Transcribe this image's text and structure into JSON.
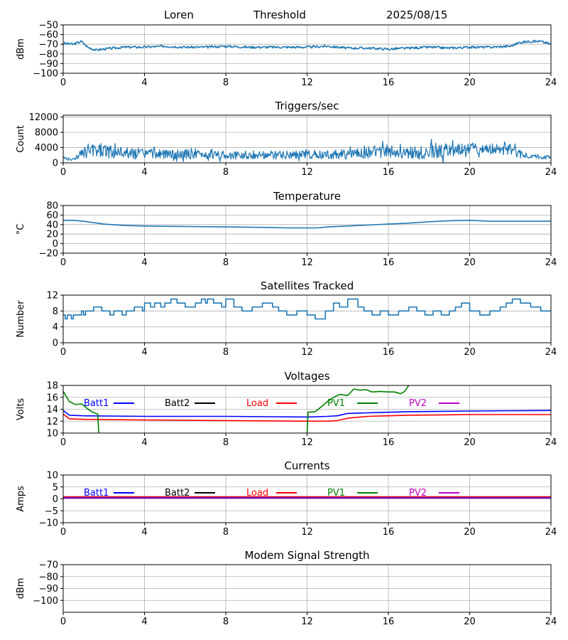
{
  "header": {
    "station": "Loren",
    "mode": "Threshold",
    "date": "2025/08/15"
  },
  "colors": {
    "series": "#1f77b4",
    "grid": "#b0b0b0",
    "batt1": "#0000ff",
    "batt2": "#000000",
    "load": "#ff0000",
    "pv1": "#008000",
    "pv2": "#bf00bf"
  },
  "chart_data": [
    {
      "id": "signal",
      "type": "line",
      "title": "",
      "ylabel": "dBm",
      "xlim": [
        0,
        24
      ],
      "ylim": [
        -100,
        -50
      ],
      "xticks": [
        0,
        4,
        8,
        12,
        16,
        20,
        24
      ],
      "yticks": [
        -100,
        -90,
        -80,
        -70,
        -60,
        -50
      ],
      "series": [
        {
          "name": "signal",
          "x": [
            0,
            0.5,
            0.9,
            1.2,
            1.6,
            2.0,
            3,
            4,
            5,
            6,
            7,
            8,
            9,
            10,
            11,
            12,
            13,
            14,
            15,
            16,
            17,
            18,
            19,
            20,
            21,
            22,
            22.5,
            23,
            23.5,
            24
          ],
          "y": [
            -69,
            -70,
            -67,
            -73,
            -76,
            -75,
            -73,
            -73,
            -72,
            -73,
            -73,
            -72,
            -73,
            -73,
            -73,
            -73,
            -72,
            -74,
            -74,
            -75,
            -74,
            -73,
            -74,
            -73,
            -73,
            -72,
            -68,
            -67,
            -67,
            -70
          ]
        }
      ]
    },
    {
      "id": "triggers",
      "type": "line",
      "title": "Triggers/sec",
      "ylabel": "Count",
      "xlim": [
        0,
        24
      ],
      "ylim": [
        0,
        12500
      ],
      "xticks": [
        0,
        4,
        8,
        12,
        16,
        20,
        24
      ],
      "yticks": [
        0,
        4000,
        8000,
        12000
      ],
      "series": [
        {
          "name": "triggers",
          "x": [
            0,
            0.5,
            1,
            1.5,
            2,
            2.5,
            3,
            3.5,
            4,
            4.5,
            5,
            5.5,
            6,
            6.5,
            7,
            7.5,
            8,
            8.5,
            9,
            9.5,
            10,
            10.5,
            11,
            11.5,
            12,
            12.5,
            13,
            13.5,
            14,
            14.5,
            15,
            15.5,
            16,
            16.5,
            17,
            17.5,
            18,
            18.5,
            19,
            19.5,
            20,
            20.5,
            21,
            21.5,
            22,
            22.5,
            23,
            23.5,
            24
          ],
          "center": [
            1300,
            800,
            2800,
            3000,
            3200,
            2800,
            2600,
            2500,
            2400,
            2300,
            2200,
            2200,
            2300,
            2100,
            2100,
            2000,
            2000,
            1900,
            1900,
            2000,
            2100,
            2000,
            2000,
            2100,
            2200,
            2200,
            2100,
            2100,
            2300,
            2500,
            2700,
            3100,
            3000,
            2500,
            2600,
            2700,
            3100,
            3000,
            3100,
            3300,
            3600,
            3600,
            3600,
            3600,
            3500,
            2200,
            1700,
            1500,
            1400
          ],
          "amp": [
            500,
            400,
            1800,
            2300,
            2600,
            2200,
            2000,
            1800,
            1700,
            1600,
            1500,
            1500,
            1600,
            1500,
            1500,
            1300,
            1300,
            1300,
            1300,
            1300,
            1400,
            1400,
            1400,
            1400,
            1500,
            1500,
            1400,
            1400,
            1600,
            1700,
            1900,
            2200,
            2200,
            1900,
            2000,
            2200,
            2700,
            2600,
            2400,
            2300,
            2000,
            1900,
            1900,
            1900,
            2000,
            1200,
            800,
            700,
            600
          ]
        }
      ]
    },
    {
      "id": "temperature",
      "type": "line",
      "title": "Temperature",
      "ylabel": "°C",
      "xlim": [
        0,
        24
      ],
      "ylim": [
        -20,
        80
      ],
      "xticks": [
        0,
        4,
        8,
        12,
        16,
        20,
        24
      ],
      "yticks": [
        -20,
        0,
        20,
        40,
        60,
        80
      ],
      "series": [
        {
          "name": "temperature",
          "x": [
            0,
            0.5,
            1,
            2,
            3,
            4,
            6,
            8,
            10,
            11,
            12,
            12.5,
            13,
            14,
            15,
            16,
            17,
            18,
            19,
            20,
            21,
            22,
            24
          ],
          "y": [
            49,
            49,
            47,
            41,
            38,
            37,
            36,
            35,
            34,
            33,
            33,
            33,
            35,
            37,
            39,
            41,
            43,
            46,
            48,
            49,
            47,
            47,
            47
          ]
        }
      ]
    },
    {
      "id": "satellites",
      "type": "line",
      "title": "Satellites Tracked",
      "ylabel": "Number",
      "xlim": [
        0,
        24
      ],
      "ylim": [
        0,
        12
      ],
      "xticks": [
        0,
        4,
        8,
        12,
        16,
        20,
        24
      ],
      "yticks": [
        0,
        4,
        8,
        12
      ],
      "series": [
        {
          "name": "satellites",
          "x": [
            0,
            0.1,
            0.2,
            0.4,
            0.5,
            0.9,
            1.0,
            1.1,
            1.5,
            1.9,
            2.3,
            2.5,
            2.9,
            3.1,
            3.5,
            3.9,
            4.0,
            4.3,
            4.5,
            4.8,
            5.0,
            5.3,
            5.6,
            6.0,
            6.5,
            6.8,
            7.0,
            7.1,
            7.4,
            7.8,
            8.0,
            8.4,
            8.8,
            9.3,
            9.8,
            10.3,
            10.6,
            11.0,
            11.5,
            12.0,
            12.4,
            12.9,
            13.3,
            13.6,
            14.0,
            14.5,
            14.8,
            15.2,
            15.6,
            16.0,
            16.5,
            17.0,
            17.4,
            17.8,
            18.2,
            18.6,
            19.0,
            19.3,
            19.6,
            20.0,
            20.5,
            21.0,
            21.5,
            21.8,
            22.1,
            22.5,
            23.0,
            23.5,
            24.0
          ],
          "y": [
            7,
            6,
            7,
            6,
            7,
            8,
            7,
            8,
            9,
            8,
            7,
            8,
            7,
            8,
            9,
            8,
            10,
            9,
            10,
            9,
            10,
            11,
            10,
            9,
            10,
            11,
            10,
            11,
            10,
            9,
            11,
            9,
            8,
            9,
            10,
            9,
            8,
            7,
            8,
            7,
            6,
            8,
            10,
            9,
            11,
            9,
            8,
            7,
            8,
            7,
            8,
            9,
            8,
            7,
            8,
            7,
            8,
            9,
            10,
            8,
            7,
            8,
            9,
            10,
            11,
            10,
            9,
            8,
            8
          ]
        }
      ]
    },
    {
      "id": "voltages",
      "type": "line",
      "title": "Voltages",
      "ylabel": "Volts",
      "xlim": [
        0,
        24
      ],
      "ylim": [
        10,
        18
      ],
      "xticks": [
        0,
        4,
        8,
        12,
        16,
        20,
        24
      ],
      "yticks": [
        10,
        12,
        14,
        16,
        18
      ],
      "legend": [
        "Batt1",
        "Batt2",
        "Load",
        "PV1",
        "PV2"
      ],
      "series": [
        {
          "name": "Batt1",
          "x": [
            0,
            0.3,
            1,
            4,
            8,
            12,
            13,
            13.5,
            14,
            15,
            16,
            17,
            20,
            24
          ],
          "y": [
            13.8,
            13.0,
            12.9,
            12.8,
            12.8,
            12.7,
            12.8,
            12.9,
            13.3,
            13.4,
            13.5,
            13.6,
            13.7,
            13.8
          ]
        },
        {
          "name": "Load",
          "x": [
            0,
            0.3,
            1,
            4,
            8,
            12,
            13,
            13.5,
            14,
            15,
            16,
            17,
            20,
            24
          ],
          "y": [
            13.2,
            12.4,
            12.3,
            12.2,
            12.1,
            12.0,
            12.0,
            12.1,
            12.5,
            12.8,
            12.9,
            13.0,
            13.1,
            13.1
          ]
        },
        {
          "name": "PV1",
          "x": [
            0,
            0.3,
            0.6,
            0.9,
            1.2,
            1.4,
            1.6,
            1.7,
            1.75,
            null,
            12.0,
            12.05,
            12.4,
            12.7,
            13.0,
            13.3,
            13.6,
            14.0,
            14.3,
            14.6,
            14.9,
            15.2,
            15.6,
            16.0,
            16.3,
            16.6,
            16.8,
            17.0
          ],
          "y": [
            17.0,
            15.3,
            14.8,
            14.9,
            14.1,
            13.6,
            13.3,
            13.2,
            10.0,
            null,
            10.0,
            13.5,
            13.6,
            14.4,
            15.3,
            16.0,
            16.5,
            16.3,
            17.4,
            17.2,
            17.3,
            16.9,
            17.0,
            16.9,
            16.9,
            16.6,
            17.0,
            18.0
          ]
        }
      ]
    },
    {
      "id": "currents",
      "type": "line",
      "title": "Currents",
      "ylabel": "Amps",
      "xlim": [
        0,
        24
      ],
      "ylim": [
        -10,
        10
      ],
      "xticks": [
        0,
        4,
        8,
        12,
        16,
        20,
        24
      ],
      "yticks": [
        -10,
        -5,
        0,
        5,
        10
      ],
      "legend": [
        "Batt1",
        "Batt2",
        "Load",
        "PV1",
        "PV2"
      ],
      "series": [
        {
          "name": "PV2",
          "x": [
            0,
            24
          ],
          "y": [
            0.3,
            0.3
          ]
        },
        {
          "name": "Batt1",
          "x": [
            0,
            24
          ],
          "y": [
            0.6,
            0.6
          ]
        },
        {
          "name": "Load",
          "x": [
            0,
            24
          ],
          "y": [
            0.9,
            0.9
          ]
        }
      ]
    },
    {
      "id": "modem",
      "type": "line",
      "title": "Modem Signal Strength",
      "ylabel": "dBm",
      "xlim": [
        0,
        24
      ],
      "ylim": [
        -110,
        -70
      ],
      "xticks": [
        0,
        4,
        8,
        12,
        16,
        20,
        24
      ],
      "yticks": [
        -100,
        -90,
        -80,
        -70
      ],
      "series": []
    }
  ]
}
